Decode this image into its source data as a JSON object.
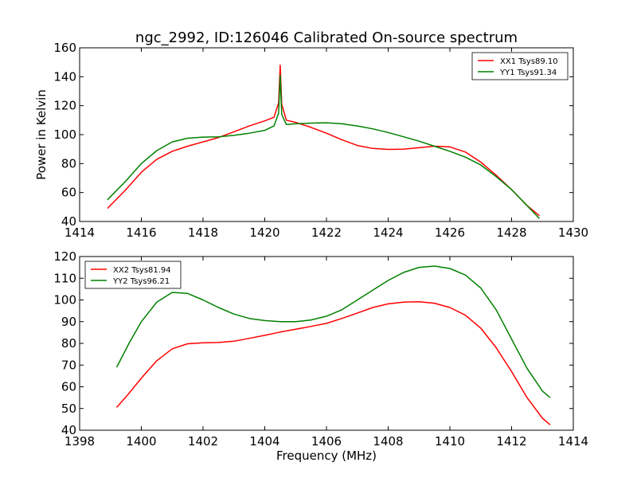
{
  "figure": {
    "title": "ngc_2992, ID:126046 Calibrated On-source spectrum"
  },
  "chart_data": [
    {
      "type": "line",
      "title": "ngc_2992, ID:126046 Calibrated On-source spectrum",
      "xlabel": "",
      "ylabel": "Power in Kelvin",
      "xlim": [
        1414,
        1430
      ],
      "ylim": [
        40,
        160
      ],
      "xticks": [
        "1414",
        "1416",
        "1418",
        "1420",
        "1422",
        "1424",
        "1426",
        "1428",
        "1430"
      ],
      "yticks": [
        "40",
        "60",
        "80",
        "100",
        "120",
        "140",
        "160"
      ],
      "grid": false,
      "legend": "top-right",
      "series": [
        {
          "name": "XX1 Tsys89.10",
          "color": "#ff0000",
          "x": [
            1414.9,
            1415.5,
            1416.0,
            1416.5,
            1417.0,
            1417.5,
            1418.0,
            1418.5,
            1419.0,
            1419.5,
            1420.0,
            1420.3,
            1420.45,
            1420.5,
            1420.55,
            1420.7,
            1421.0,
            1421.5,
            1422.0,
            1422.5,
            1423.0,
            1423.5,
            1424.0,
            1424.5,
            1425.0,
            1425.5,
            1426.0,
            1426.5,
            1427.0,
            1427.5,
            1428.0,
            1428.5,
            1428.9
          ],
          "y": [
            49,
            62,
            74,
            83,
            88.5,
            92,
            95,
            98,
            102,
            106,
            109.5,
            112,
            122,
            148,
            121,
            110,
            108.5,
            105,
            101,
            96.5,
            92.5,
            90.5,
            89.8,
            90,
            91,
            92,
            91.5,
            88,
            81,
            72,
            62,
            51,
            44
          ]
        },
        {
          "name": "YY1 Tsys91.34",
          "color": "#008000",
          "x": [
            1414.9,
            1415.5,
            1416.0,
            1416.5,
            1417.0,
            1417.5,
            1418.0,
            1418.5,
            1419.0,
            1419.5,
            1420.0,
            1420.3,
            1420.45,
            1420.5,
            1420.55,
            1420.7,
            1421.0,
            1421.5,
            1422.0,
            1422.5,
            1423.0,
            1423.5,
            1424.0,
            1424.5,
            1425.0,
            1425.5,
            1426.0,
            1426.5,
            1427.0,
            1427.5,
            1428.0,
            1428.5,
            1428.9
          ],
          "y": [
            55,
            68,
            80,
            89,
            95,
            97.5,
            98.3,
            98.5,
            99.5,
            101,
            103,
            106,
            115,
            141,
            114,
            107,
            107.5,
            108,
            108.2,
            107.5,
            106,
            104,
            101.5,
            98.5,
            95.5,
            92,
            88.5,
            84.5,
            79,
            71,
            62,
            51,
            42
          ]
        }
      ]
    },
    {
      "type": "line",
      "title": "",
      "xlabel": "Frequency (MHz)",
      "ylabel": "",
      "xlim": [
        1398,
        1414
      ],
      "ylim": [
        40,
        120
      ],
      "xticks": [
        "1398",
        "1400",
        "1402",
        "1404",
        "1406",
        "1408",
        "1410",
        "1412",
        "1414"
      ],
      "yticks": [
        "40",
        "50",
        "60",
        "70",
        "80",
        "90",
        "100",
        "110",
        "120"
      ],
      "grid": false,
      "legend": "top-left",
      "series": [
        {
          "name": "XX2 Tsys81.94",
          "color": "#ff0000",
          "x": [
            1399.2,
            1399.6,
            1400.0,
            1400.5,
            1401.0,
            1401.5,
            1402.0,
            1402.5,
            1403.0,
            1403.5,
            1404.0,
            1404.5,
            1405.0,
            1405.5,
            1406.0,
            1406.5,
            1407.0,
            1407.5,
            1408.0,
            1408.5,
            1409.0,
            1409.5,
            1410.0,
            1410.5,
            1411.0,
            1411.5,
            1412.0,
            1412.5,
            1413.0,
            1413.25
          ],
          "y": [
            50.5,
            57,
            64,
            72,
            77.5,
            79.8,
            80.3,
            80.4,
            81,
            82.3,
            83.7,
            85.2,
            86.5,
            87.8,
            89.2,
            91.5,
            94,
            96.5,
            98.2,
            99,
            99.2,
            98.5,
            96.5,
            93,
            87,
            78,
            67,
            55,
            45.5,
            42.5
          ]
        },
        {
          "name": "YY2 Tsys96.21",
          "color": "#008000",
          "x": [
            1399.2,
            1399.6,
            1400.0,
            1400.5,
            1401.0,
            1401.5,
            1402.0,
            1402.5,
            1403.0,
            1403.5,
            1404.0,
            1404.5,
            1405.0,
            1405.5,
            1406.0,
            1406.5,
            1407.0,
            1407.5,
            1408.0,
            1408.5,
            1409.0,
            1409.5,
            1410.0,
            1410.5,
            1411.0,
            1411.5,
            1412.0,
            1412.5,
            1413.0,
            1413.25
          ],
          "y": [
            69,
            80,
            90,
            99,
            103.5,
            103,
            100,
            96.5,
            93.5,
            91.5,
            90.5,
            90,
            90,
            90.8,
            92.5,
            95.5,
            100,
            104.5,
            109,
            112.7,
            115,
            115.6,
            114.5,
            111.5,
            105.5,
            95.5,
            82,
            68.5,
            58,
            55
          ]
        }
      ]
    }
  ]
}
